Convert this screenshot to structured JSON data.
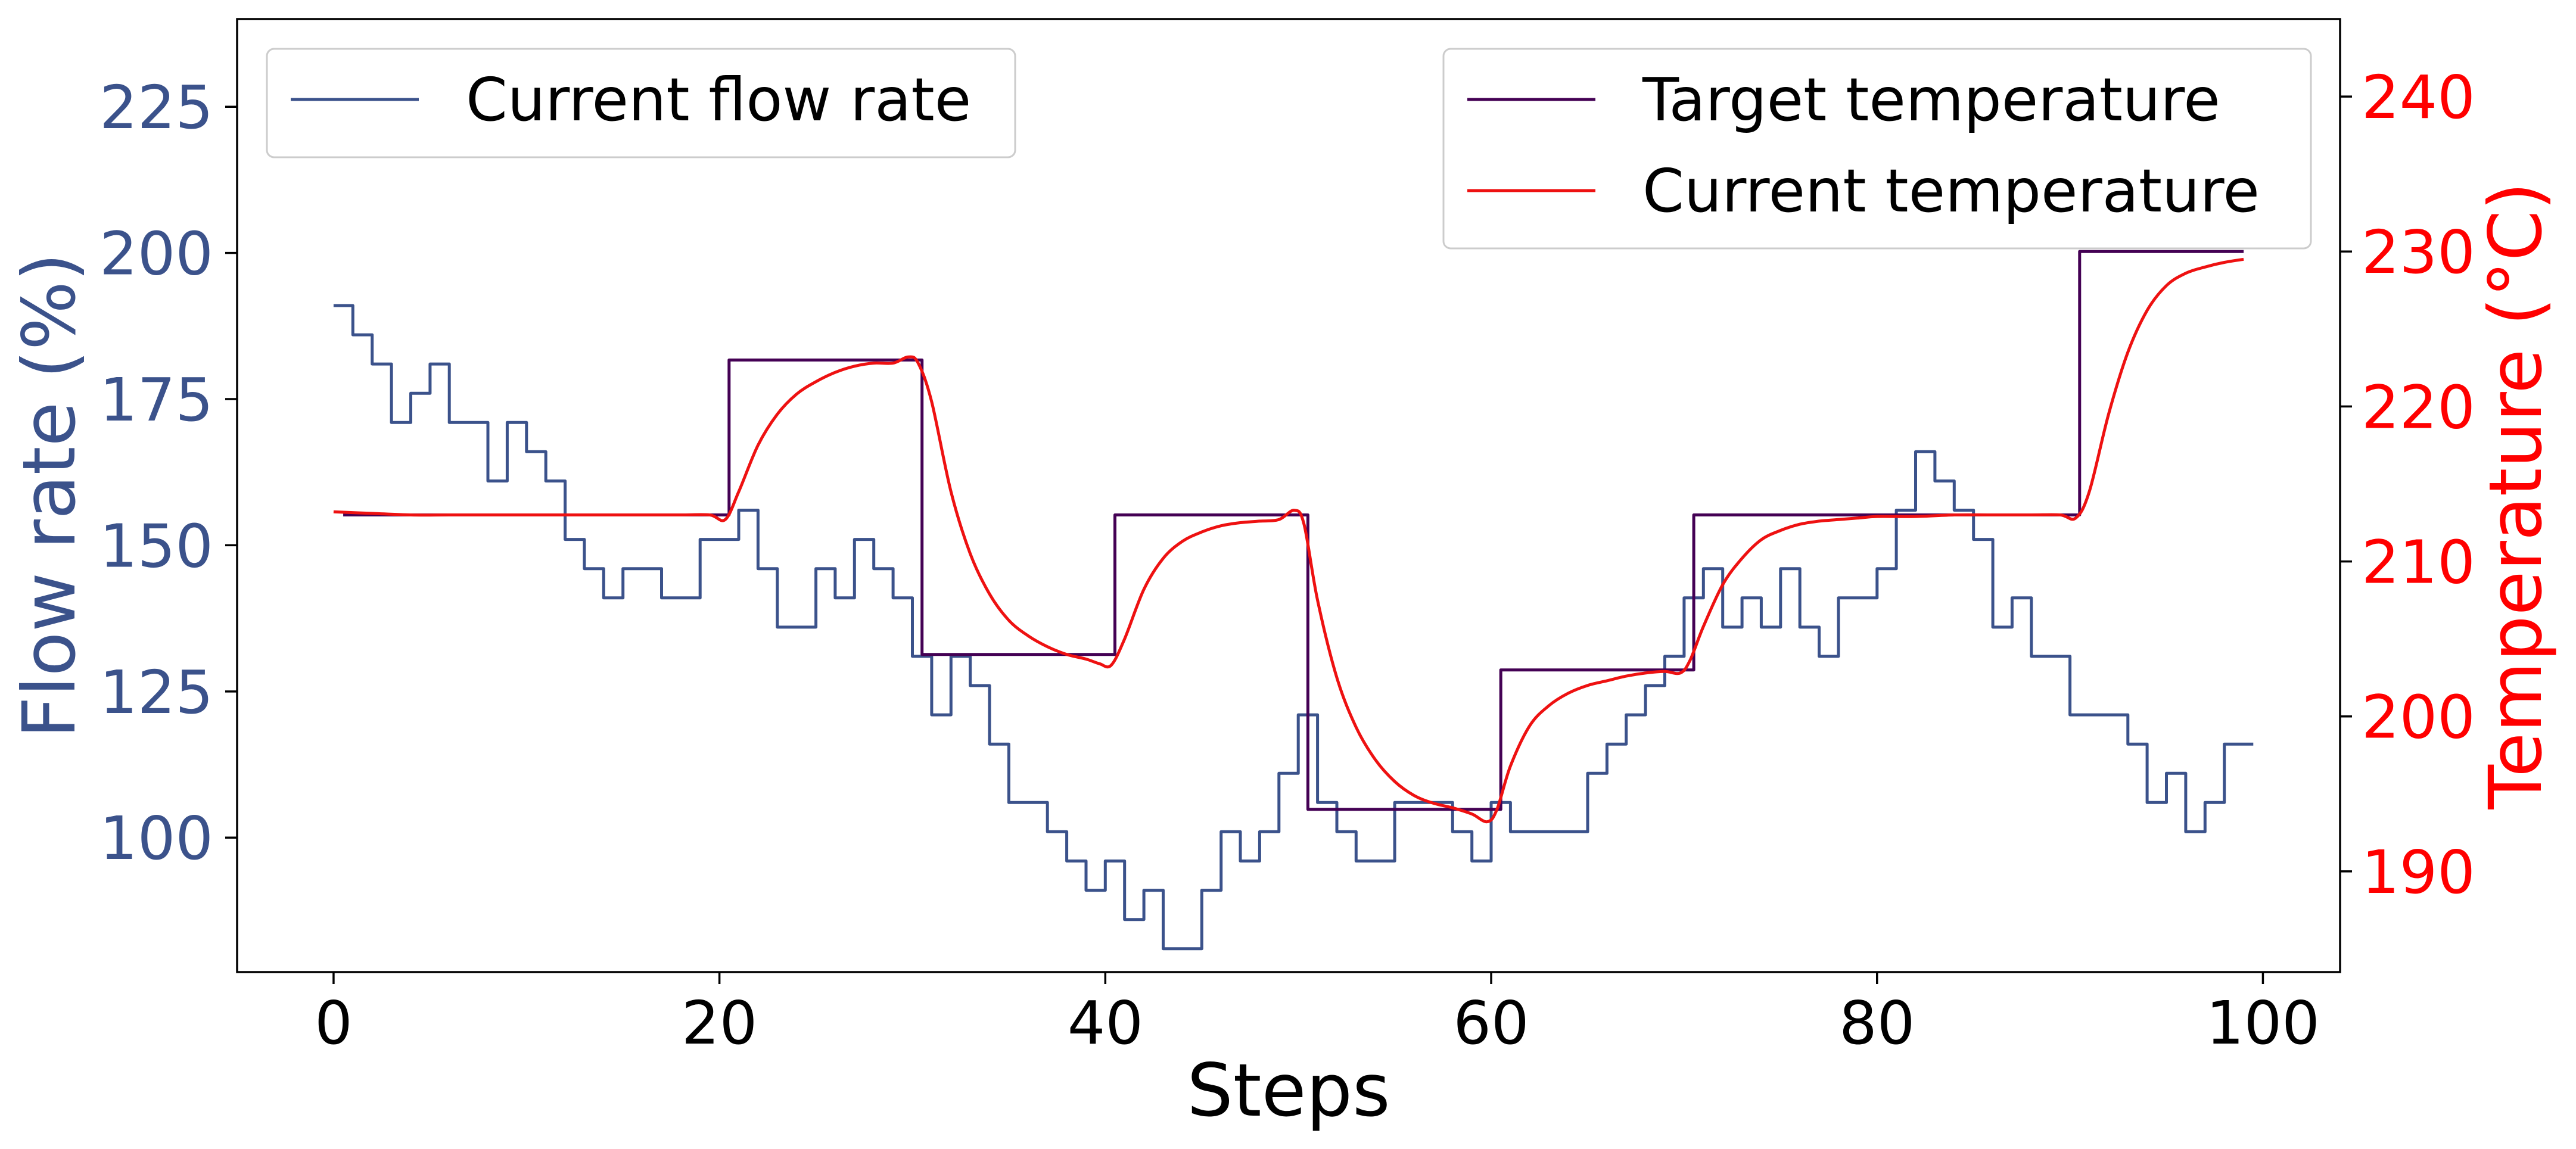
{
  "chart_data": {
    "type": "line",
    "xlabel": "Steps",
    "y_left_label": "Flow rate (%)",
    "y_right_label": "Temperature (°C)",
    "xlim": [
      -5,
      104
    ],
    "y_left_lim": [
      77,
      240
    ],
    "y_right_lim": [
      183.5,
      245
    ],
    "x_ticks": [
      0,
      20,
      40,
      60,
      80,
      100
    ],
    "y_left_ticks": [
      100,
      125,
      150,
      175,
      200,
      225
    ],
    "y_right_ticks": [
      190,
      200,
      210,
      220,
      230,
      240
    ],
    "grid": false,
    "colors": {
      "flow": "#3b528b",
      "target": "#440154",
      "current_temp": "#ee1111",
      "right_axis": "#ff0000"
    },
    "legends": {
      "left": {
        "placement": "upper-left",
        "entries": [
          "Current flow rate"
        ]
      },
      "right": {
        "placement": "upper-right",
        "entries": [
          "Target temperature",
          "Current temperature"
        ]
      }
    },
    "series": [
      {
        "name": "Current flow rate",
        "axis": "left",
        "style": "step",
        "x": [
          0,
          1,
          2,
          3,
          4,
          5,
          6,
          7,
          8,
          9,
          10,
          11,
          12,
          13,
          14,
          15,
          16,
          17,
          18,
          19,
          20,
          21,
          22,
          23,
          24,
          25,
          26,
          27,
          28,
          29,
          30,
          31,
          32,
          33,
          34,
          35,
          36,
          37,
          38,
          39,
          40,
          41,
          42,
          43,
          44,
          45,
          46,
          47,
          48,
          49,
          50,
          51,
          52,
          53,
          54,
          55,
          56,
          57,
          58,
          59,
          60,
          61,
          62,
          63,
          64,
          65,
          66,
          67,
          68,
          69,
          70,
          71,
          72,
          73,
          74,
          75,
          76,
          77,
          78,
          79,
          80,
          81,
          82,
          83,
          84,
          85,
          86,
          87,
          88,
          89,
          90,
          91,
          92,
          93,
          94,
          95,
          96,
          97,
          98,
          99
        ],
        "values": [
          191,
          186,
          181,
          171,
          176,
          181,
          171,
          171,
          161,
          171,
          166,
          161,
          151,
          146,
          141,
          146,
          146,
          141,
          141,
          151,
          151,
          156,
          146,
          136,
          136,
          146,
          141,
          151,
          146,
          141,
          131,
          121,
          131,
          126,
          116,
          106,
          106,
          101,
          96,
          91,
          96,
          86,
          91,
          81,
          81,
          91,
          101,
          96,
          101,
          111,
          121,
          106,
          101,
          96,
          96,
          106,
          106,
          106,
          101,
          96,
          106,
          101,
          101,
          101,
          101,
          111,
          116,
          121,
          126,
          131,
          141,
          146,
          136,
          141,
          136,
          146,
          136,
          131,
          141,
          141,
          146,
          156,
          166,
          161,
          156,
          151,
          136,
          141,
          131,
          131,
          121,
          121,
          121,
          116,
          106,
          111,
          101,
          106,
          116,
          116
        ]
      },
      {
        "name": "Target temperature",
        "axis": "right",
        "style": "step",
        "x": [
          0.5,
          20.5,
          30.5,
          40.5,
          50.5,
          60.5,
          70.5,
          90.5,
          99
        ],
        "values": [
          213,
          223,
          204,
          213,
          194,
          203,
          213,
          230,
          230
        ]
      },
      {
        "name": "Current temperature",
        "axis": "right",
        "style": "smooth",
        "x": [
          0,
          2,
          4,
          6,
          8,
          10,
          12,
          14,
          16,
          18,
          19.5,
          20.3,
          21,
          22,
          23,
          24,
          25,
          26,
          27,
          28,
          29,
          29.8,
          30.3,
          31,
          32,
          33,
          34,
          35,
          36,
          37,
          38,
          39,
          39.7,
          40.3,
          41,
          42,
          43,
          44,
          45,
          46,
          47,
          48,
          49,
          49.8,
          50.3,
          51,
          52,
          53,
          54,
          55,
          56,
          57,
          58,
          59,
          59.8,
          60.3,
          61,
          62,
          63,
          64,
          65,
          66,
          67,
          68,
          69,
          69.8,
          70.3,
          71,
          72,
          73,
          74,
          75,
          76,
          77,
          78,
          79,
          80,
          82,
          84,
          86,
          88,
          89.5,
          90.3,
          91,
          92,
          93,
          94,
          95,
          96,
          97,
          98,
          99
        ],
        "values": [
          213.2,
          213.1,
          213.0,
          213.0,
          213.0,
          213.0,
          213.0,
          213.0,
          213.0,
          213.0,
          213.0,
          212.7,
          214.5,
          217.5,
          219.5,
          220.8,
          221.6,
          222.2,
          222.6,
          222.8,
          222.8,
          223.2,
          222.8,
          220.3,
          214.5,
          210.5,
          207.9,
          206.2,
          205.2,
          204.5,
          204.0,
          203.7,
          203.4,
          203.3,
          205.0,
          208.2,
          210.2,
          211.3,
          211.9,
          212.3,
          212.5,
          212.6,
          212.7,
          213.3,
          212.4,
          207.5,
          202.5,
          199.3,
          197.2,
          195.8,
          194.9,
          194.4,
          194.1,
          193.7,
          193.2,
          194.0,
          196.8,
          199.4,
          200.7,
          201.5,
          202.0,
          202.3,
          202.6,
          202.8,
          202.9,
          202.8,
          203.6,
          205.8,
          208.5,
          210.2,
          211.4,
          212.0,
          212.4,
          212.6,
          212.7,
          212.8,
          212.9,
          212.9,
          213.0,
          213.0,
          213.0,
          213.0,
          212.8,
          214.5,
          219.5,
          223.5,
          226.2,
          227.8,
          228.6,
          229.0,
          229.3,
          229.5
        ]
      }
    ]
  }
}
